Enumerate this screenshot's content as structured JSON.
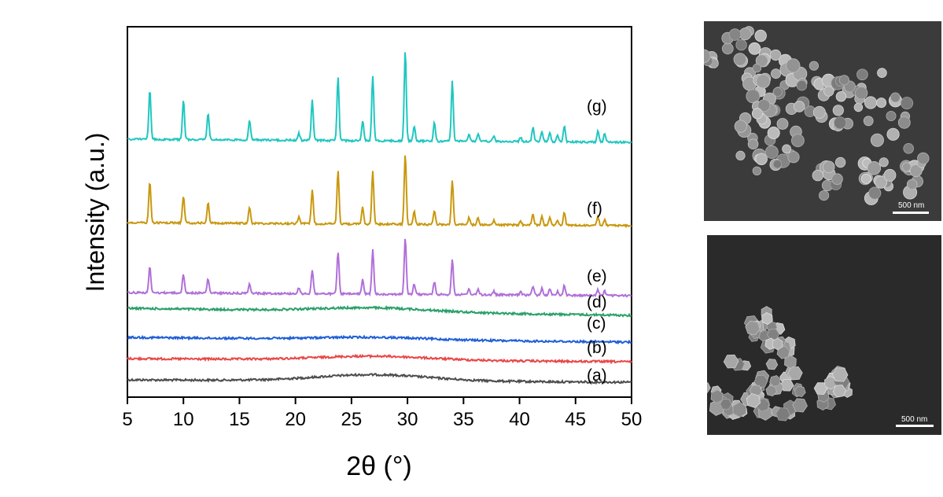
{
  "chart_data": {
    "type": "line",
    "title": "",
    "xlabel": "2θ (°)",
    "ylabel": "Intensity (a.u.)",
    "xlim": [
      5,
      50
    ],
    "xticks": [
      5,
      10,
      15,
      20,
      25,
      30,
      35,
      40,
      45,
      50
    ],
    "legend": "none",
    "grid": false,
    "series": [
      {
        "label": "(a)",
        "color": "#4d4d4d",
        "kind": "amorphous",
        "peaks": []
      },
      {
        "label": "(b)",
        "color": "#e84848",
        "kind": "amorphous",
        "peaks": []
      },
      {
        "label": "(c)",
        "color": "#1f5fd6",
        "kind": "amorphous",
        "peaks": []
      },
      {
        "label": "(d)",
        "color": "#2aa06a",
        "kind": "amorphous",
        "peaks": []
      },
      {
        "label": "(e)",
        "color": "#b070d8",
        "kind": "crystalline",
        "peaks": [
          [
            7.0,
            0.45
          ],
          [
            10.0,
            0.33
          ],
          [
            12.2,
            0.25
          ],
          [
            15.9,
            0.18
          ],
          [
            20.3,
            0.1
          ],
          [
            21.5,
            0.42
          ],
          [
            23.8,
            0.75
          ],
          [
            26.0,
            0.25
          ],
          [
            26.9,
            0.78
          ],
          [
            29.8,
            1.0
          ],
          [
            30.6,
            0.18
          ],
          [
            32.4,
            0.22
          ],
          [
            34.0,
            0.62
          ],
          [
            35.5,
            0.1
          ],
          [
            36.3,
            0.1
          ],
          [
            37.7,
            0.06
          ],
          [
            40.1,
            0.05
          ],
          [
            41.2,
            0.16
          ],
          [
            42.0,
            0.12
          ],
          [
            42.7,
            0.1
          ],
          [
            43.4,
            0.07
          ],
          [
            44.0,
            0.18
          ],
          [
            47.0,
            0.1
          ],
          [
            47.6,
            0.08
          ]
        ]
      },
      {
        "label": "(f)",
        "color": "#c9980f",
        "kind": "crystalline",
        "peaks": [
          [
            7.0,
            0.58
          ],
          [
            10.0,
            0.38
          ],
          [
            12.2,
            0.28
          ],
          [
            15.9,
            0.22
          ],
          [
            20.3,
            0.1
          ],
          [
            21.5,
            0.48
          ],
          [
            23.8,
            0.75
          ],
          [
            26.0,
            0.24
          ],
          [
            26.9,
            0.74
          ],
          [
            29.8,
            1.0
          ],
          [
            30.6,
            0.18
          ],
          [
            32.4,
            0.2
          ],
          [
            34.0,
            0.63
          ],
          [
            35.5,
            0.1
          ],
          [
            36.3,
            0.1
          ],
          [
            37.7,
            0.06
          ],
          [
            40.1,
            0.05
          ],
          [
            41.2,
            0.16
          ],
          [
            42.0,
            0.12
          ],
          [
            42.7,
            0.1
          ],
          [
            43.4,
            0.07
          ],
          [
            44.0,
            0.18
          ],
          [
            47.0,
            0.12
          ],
          [
            47.6,
            0.08
          ]
        ]
      },
      {
        "label": "(g)",
        "color": "#20c7c0",
        "kind": "crystalline",
        "peaks": [
          [
            7.0,
            0.54
          ],
          [
            10.0,
            0.44
          ],
          [
            12.2,
            0.3
          ],
          [
            15.9,
            0.22
          ],
          [
            20.3,
            0.08
          ],
          [
            21.5,
            0.45
          ],
          [
            23.8,
            0.7
          ],
          [
            26.0,
            0.22
          ],
          [
            26.9,
            0.72
          ],
          [
            29.8,
            1.0
          ],
          [
            30.6,
            0.16
          ],
          [
            32.4,
            0.2
          ],
          [
            34.0,
            0.66
          ],
          [
            35.5,
            0.08
          ],
          [
            36.3,
            0.08
          ],
          [
            37.7,
            0.06
          ],
          [
            40.1,
            0.05
          ],
          [
            41.2,
            0.16
          ],
          [
            42.0,
            0.12
          ],
          [
            42.7,
            0.1
          ],
          [
            43.4,
            0.07
          ],
          [
            44.0,
            0.18
          ],
          [
            47.0,
            0.12
          ],
          [
            47.6,
            0.1
          ]
        ]
      }
    ]
  },
  "sem_images": [
    {
      "name": "sem-image-top",
      "scale_label": "500 nm"
    },
    {
      "name": "sem-image-bottom",
      "scale_label": "500 nm"
    }
  ]
}
